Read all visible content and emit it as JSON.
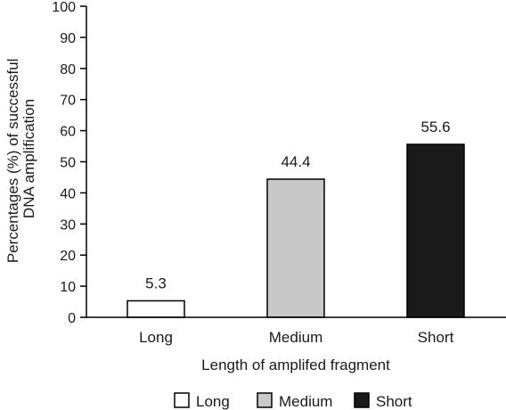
{
  "chart_data": {
    "type": "bar",
    "categories": [
      "Long",
      "Medium",
      "Short"
    ],
    "values": [
      5.3,
      44.4,
      55.6
    ],
    "data_labels": [
      "5.3",
      "44.4",
      "55.6"
    ],
    "bar_colors": [
      "#ffffff",
      "#c8c8c8",
      "#1a1a1a"
    ],
    "xlabel": "Length of amplifed fragment",
    "ylabel_lines": [
      "Percentages (%) of successful",
      "DNA amplification"
    ],
    "ylim": [
      0,
      100
    ],
    "yticks": [
      "0",
      "10",
      "20",
      "30",
      "40",
      "50",
      "60",
      "70",
      "80",
      "90",
      "100"
    ],
    "grid": false,
    "legend": {
      "placement": "bottom-center",
      "entries": [
        {
          "label": "Long",
          "color": "#ffffff"
        },
        {
          "label": "Medium",
          "color": "#c8c8c8"
        },
        {
          "label": "Short",
          "color": "#1a1a1a"
        }
      ]
    }
  }
}
